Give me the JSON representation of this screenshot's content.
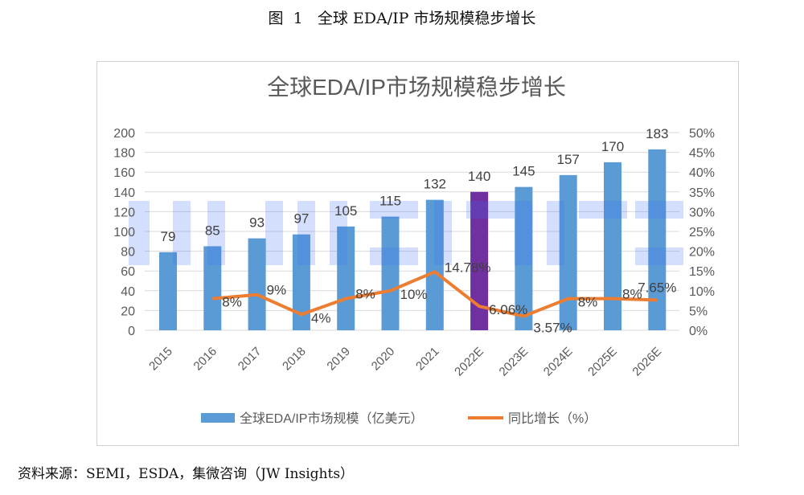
{
  "figure_caption": "图  1   全球 EDA/IP 市场规模稳步增长",
  "source": "资料来源：SEMI，ESDA，集微咨询（JW Insights）",
  "watermark": "JW INSIGHTS",
  "chart_data": {
    "type": "bar+line",
    "title": "全球EDA/IP市场规模稳步增长",
    "categories": [
      "2015",
      "2016",
      "2017",
      "2018",
      "2019",
      "2020",
      "2021",
      "2022E",
      "2023E",
      "2024E",
      "2025E",
      "2026E"
    ],
    "series": [
      {
        "name": "全球EDA/IP市场规模（亿美元）",
        "type": "bar",
        "axis": "left",
        "color": "#5b9bd5",
        "highlight": {
          "2022E": "#7030a0"
        },
        "values": [
          79,
          85,
          93,
          97,
          105,
          115,
          132,
          140,
          145,
          157,
          170,
          183
        ],
        "labels": [
          "79",
          "85",
          "93",
          "97",
          "105",
          "115",
          "132",
          "140",
          "145",
          "157",
          "170",
          "183"
        ]
      },
      {
        "name": "同比增长（%）",
        "type": "line",
        "axis": "right",
        "color": "#ed7d31",
        "x": [
          "2016",
          "2017",
          "2018",
          "2019",
          "2020",
          "2021",
          "2022E",
          "2023E",
          "2024E",
          "2025E",
          "2026E"
        ],
        "values": [
          8,
          9,
          4,
          8,
          10,
          14.78,
          6.06,
          3.57,
          8,
          8,
          7.65
        ],
        "labels": [
          "8%",
          "9%",
          "4%",
          "8%",
          "10%",
          "14.78%",
          "6.06%",
          "3.57%",
          "8%",
          "8%",
          "7.65%"
        ]
      }
    ],
    "left_axis": {
      "min": 0,
      "max": 200,
      "ticks": [
        "0",
        "20",
        "40",
        "60",
        "80",
        "100",
        "120",
        "140",
        "160",
        "180",
        "200"
      ]
    },
    "right_axis": {
      "min": 0,
      "max": 50,
      "ticks": [
        "0%",
        "5%",
        "10%",
        "15%",
        "20%",
        "25%",
        "30%",
        "35%",
        "40%",
        "45%",
        "50%"
      ]
    },
    "grid": true,
    "legend": "bottom"
  }
}
